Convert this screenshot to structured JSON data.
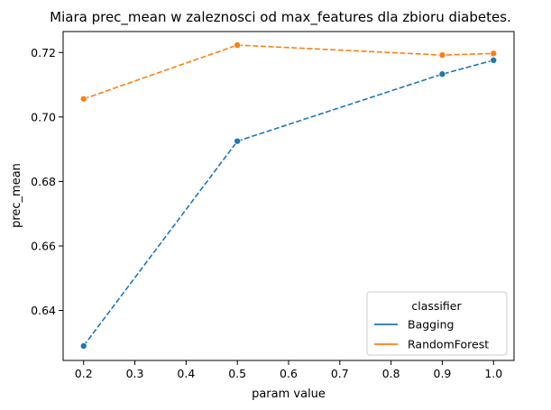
{
  "chart_data": {
    "type": "line",
    "title": "Miara prec_mean w zaleznosci od max_features dla zbioru diabetes.",
    "xlabel": "param value",
    "ylabel": "prec_mean",
    "x": [
      0.2,
      0.5,
      0.9,
      1.0
    ],
    "xlim": [
      0.16,
      1.04
    ],
    "ylim": [
      0.6245,
      0.7265
    ],
    "xticks": [
      "0.2",
      "0.3",
      "0.4",
      "0.5",
      "0.6",
      "0.7",
      "0.8",
      "0.9",
      "1.0"
    ],
    "yticks": [
      "0.64",
      "0.66",
      "0.68",
      "0.70",
      "0.72"
    ],
    "grid": false,
    "legend": {
      "title": "classifier",
      "placement": "lower-right"
    },
    "series": [
      {
        "name": "Bagging",
        "color": "#1f77b4",
        "values": [
          0.629,
          0.6925,
          0.7133,
          0.7176
        ]
      },
      {
        "name": "RandomForest",
        "color": "#ff7f0e",
        "values": [
          0.7056,
          0.7223,
          0.7192,
          0.7197
        ]
      }
    ]
  }
}
